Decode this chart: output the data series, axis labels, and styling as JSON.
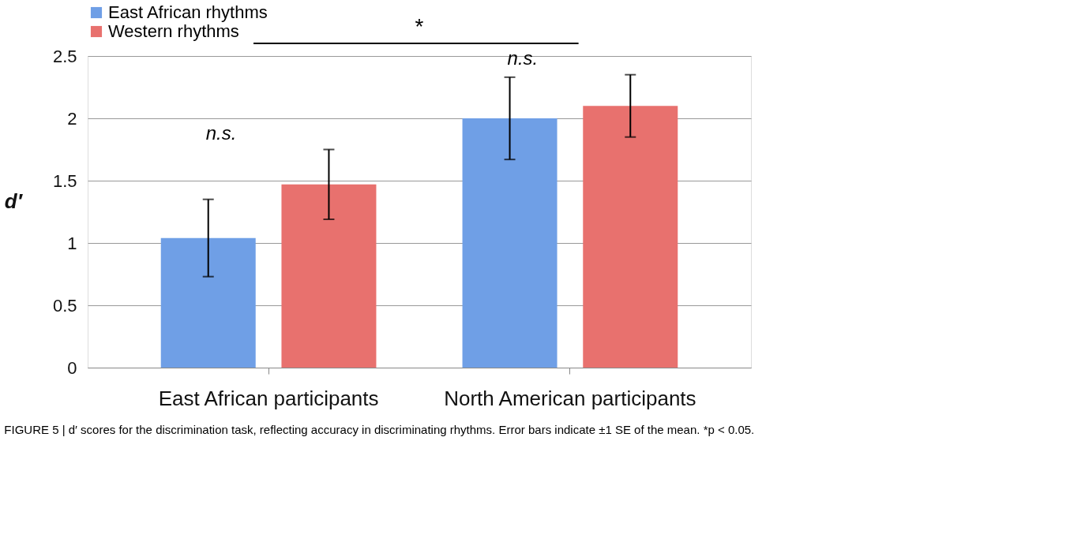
{
  "chart_data": {
    "type": "bar",
    "ylabel": "d′",
    "categories": [
      "East African participants",
      "North American participants"
    ],
    "series": [
      {
        "name": "East African rhythms",
        "color": "#6f9fe6",
        "values": [
          1.04,
          2.0
        ],
        "errors": [
          0.31,
          0.33
        ]
      },
      {
        "name": "Western rhythms",
        "color": "#e8716e",
        "values": [
          1.47,
          2.1
        ],
        "errors": [
          0.28,
          0.25
        ]
      }
    ],
    "ylim": [
      0,
      2.5
    ],
    "yticks": [
      0,
      0.5,
      1,
      1.5,
      2,
      2.5
    ],
    "grid": "y",
    "legend": "top left",
    "annotations": [
      "*",
      "n.s.",
      "n.s.",
      "FIGURE 5 | d′ scores for the discrimination task, reflecting accuracy in discriminating rhythms. Error bars indicate ±1 SE of the mean. *p < 0.05."
    ]
  }
}
